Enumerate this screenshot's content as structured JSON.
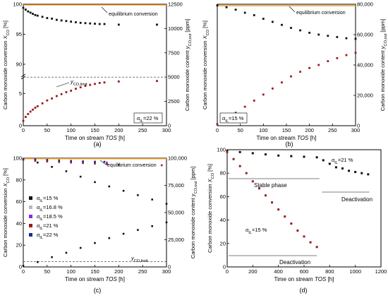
{
  "colors": {
    "black_series": "#111111",
    "red_series": "#9b1c1c",
    "equilibrium_line": "#f0a020",
    "grey_series": "#b8b8b8",
    "violet_series": "#8a2be2",
    "navy_series": "#1f2a8c",
    "axis": "#000000"
  },
  "chart_data": [
    {
      "panel_label": "(a)",
      "type": "scatter",
      "xlabel": "Time on stream TOS [h]",
      "ylabel_left": "Carbon monoxide conversion X_CO [%]",
      "ylabel_right": "Carbon monoxide content y_CO,out [ppm]",
      "xlim": [
        0,
        300
      ],
      "x_ticks": [
        "0",
        "50",
        "100",
        "150",
        "200",
        "250",
        "300"
      ],
      "y_left_ticks_upper": [
        "90",
        "95",
        "100"
      ],
      "y_left_ticks_lower": [
        "0",
        "5"
      ],
      "y_right_ticks": [
        "0",
        "2500",
        "5000",
        "7500",
        "10000",
        "12500"
      ],
      "y_right_lim": [
        0,
        12500
      ],
      "annotations": [
        "equilibrium conversion",
        "y_CO,limit",
        "α_IL=22 %"
      ],
      "equilibrium_ppm": 12500,
      "limit_ppm": 5000,
      "series": [
        {
          "role": "conversion",
          "color": "black",
          "x": [
            0,
            5,
            10,
            15,
            20,
            25,
            30,
            40,
            50,
            60,
            70,
            80,
            90,
            100,
            110,
            120,
            130,
            140,
            150,
            160,
            170,
            200,
            280
          ],
          "y": [
            99.4,
            99.1,
            98.8,
            98.6,
            98.4,
            98.2,
            98.1,
            97.9,
            97.7,
            97.6,
            97.4,
            97.3,
            97.2,
            97.1,
            97.0,
            96.9,
            96.85,
            96.8,
            96.75,
            96.7,
            96.7,
            96.6,
            96.6
          ]
        },
        {
          "role": "co_content_ppm",
          "color": "red",
          "x": [
            0,
            5,
            10,
            15,
            20,
            25,
            30,
            40,
            50,
            60,
            70,
            80,
            90,
            100,
            110,
            120,
            130,
            140,
            150,
            160,
            170,
            200,
            280
          ],
          "y": [
            500,
            900,
            1200,
            1450,
            1650,
            1850,
            2000,
            2300,
            2600,
            2800,
            3050,
            3250,
            3450,
            3600,
            3800,
            3950,
            4100,
            4200,
            4300,
            4400,
            4450,
            4550,
            4600
          ]
        }
      ]
    },
    {
      "panel_label": "(b)",
      "type": "scatter",
      "xlabel": "Time on stream TOS [h]",
      "ylabel_left": "Carbon monoxide conversion X_CO [%]",
      "ylabel_right": "Carbon monoxide content y_CO,out [ppm]",
      "xlim": [
        0,
        300
      ],
      "x_ticks": [
        "0",
        "50",
        "100",
        "150",
        "200",
        "250",
        "300"
      ],
      "y_right_ticks": [
        "0",
        "20,000",
        "40,000",
        "60,000",
        "80,000"
      ],
      "y_right_lim": [
        0,
        80000
      ],
      "annotations": [
        "equilibrium conversion",
        "α_IL=15 %"
      ],
      "series": [
        {
          "role": "conversion",
          "color": "black",
          "x": [
            0,
            20,
            40,
            60,
            80,
            100,
            120,
            140,
            160,
            180,
            200,
            220,
            240,
            260,
            280,
            300
          ],
          "y": [
            99.0,
            97.5,
            95.5,
            93.0,
            91.0,
            88.0,
            85.5,
            83.0,
            80.5,
            78.5,
            76.5,
            75.0,
            74.0,
            73.0,
            72.0,
            71.5
          ]
        },
        {
          "role": "co_content_ppm",
          "color": "red",
          "x": [
            0,
            20,
            40,
            60,
            80,
            100,
            120,
            140,
            160,
            180,
            200,
            220,
            240,
            260,
            280,
            300
          ],
          "y": [
            1000,
            4500,
            8500,
            12500,
            16500,
            20500,
            24500,
            28500,
            32500,
            35500,
            38000,
            40000,
            42500,
            44500,
            46500,
            48000
          ]
        }
      ]
    },
    {
      "panel_label": "(c)",
      "type": "scatter",
      "xlabel": "Time on stream TOS [h]",
      "ylabel_left": "Carbon monoxide conversion X_CO [%]",
      "ylabel_right": "Carbon monoxide content y_CO,out [ppm]",
      "xlim": [
        0,
        300
      ],
      "ylim": [
        0,
        100
      ],
      "x_ticks": [
        "0",
        "50",
        "100",
        "150",
        "200",
        "250",
        "300"
      ],
      "y_left_ticks": [
        "0",
        "20",
        "40",
        "60",
        "80",
        "100"
      ],
      "y_right_ticks": [
        "0",
        "25,000",
        "50,000",
        "75,000",
        "100,000"
      ],
      "y_right_lim": [
        0,
        100000
      ],
      "annotations": [
        "equilibrium conversion",
        "y_CO,limit"
      ],
      "legend_position": "left-middle",
      "series": [
        {
          "name": "α_IL=15 %",
          "color": "black",
          "role": "conversion",
          "x": [
            0,
            30,
            60,
            90,
            120,
            150,
            180,
            210,
            240,
            270,
            300
          ],
          "y": [
            99,
            96,
            92,
            88,
            83,
            78,
            74,
            70,
            66,
            62,
            58
          ]
        },
        {
          "name": "α_IL=15 %",
          "color": "black",
          "role": "co_content_ppm",
          "x": [
            0,
            30,
            60,
            90,
            120,
            150,
            180,
            210,
            240,
            270,
            300
          ],
          "y": [
            1000,
            4500,
            9000,
            13000,
            17500,
            22000,
            26500,
            30500,
            34000,
            37500,
            41000
          ]
        },
        {
          "name": "α_IL=16.8 %",
          "color": "grey",
          "role": "conversion",
          "x": [
            0,
            25,
            50,
            75,
            100,
            125,
            150,
            175
          ],
          "y": [
            99,
            98,
            97.5,
            97,
            96.5,
            96,
            95.5,
            95
          ]
        },
        {
          "name": "α_IL=18.5 %",
          "color": "violet",
          "role": "conversion",
          "x": [
            0,
            25,
            50,
            75,
            100,
            125,
            150,
            175
          ],
          "y": [
            99.5,
            99,
            98.5,
            98,
            97.5,
            97,
            96.5,
            96
          ]
        },
        {
          "name": "α_IL=21 %",
          "color": "red",
          "role": "conversion",
          "x": [
            0,
            25,
            50,
            75,
            100,
            125,
            150,
            175,
            200,
            290
          ],
          "y": [
            98.5,
            97.5,
            97,
            96.5,
            96,
            95.5,
            95,
            94.5,
            94,
            93.5
          ]
        },
        {
          "name": "α_IL=22 %",
          "color": "navy",
          "role": "conversion",
          "x": [
            0,
            25,
            50,
            75,
            100,
            125,
            150,
            170
          ],
          "y": [
            99.5,
            98.8,
            98.2,
            97.8,
            97.4,
            97,
            96.8,
            96.7
          ]
        }
      ]
    },
    {
      "panel_label": "(d)",
      "type": "scatter",
      "xlabel": "Time on stream TOS [h]",
      "ylabel_left": "Carbon monoxide conversion X_CO [%]",
      "xlim": [
        0,
        1200
      ],
      "ylim": [
        0,
        100
      ],
      "x_ticks": [
        "0",
        "200",
        "400",
        "600",
        "800",
        "1000",
        "1200"
      ],
      "y_left_ticks": [
        "0",
        "20",
        "40",
        "60",
        "80",
        "100"
      ],
      "annotations": [
        "α_IL=21 %",
        "Stable phase",
        "Deactivation",
        "α_IL=15 %",
        "Deactivation"
      ],
      "series": [
        {
          "name": "α_IL=21 %",
          "color": "black",
          "x": [
            0,
            100,
            200,
            300,
            400,
            500,
            600,
            700,
            750,
            800,
            850,
            900,
            950,
            1000,
            1050,
            1100
          ],
          "y": [
            99,
            98,
            97,
            96,
            95,
            94.5,
            94,
            93.5,
            91,
            88,
            85,
            84,
            82,
            81,
            80,
            79
          ]
        },
        {
          "name": "α_IL=15 %",
          "color": "red",
          "x": [
            0,
            50,
            100,
            150,
            200,
            250,
            300,
            350,
            400,
            450,
            500,
            550,
            600,
            650,
            700
          ],
          "y": [
            98,
            92,
            86,
            80,
            73,
            67,
            61,
            55,
            49,
            43,
            37,
            31,
            26,
            21,
            17
          ]
        }
      ]
    }
  ]
}
